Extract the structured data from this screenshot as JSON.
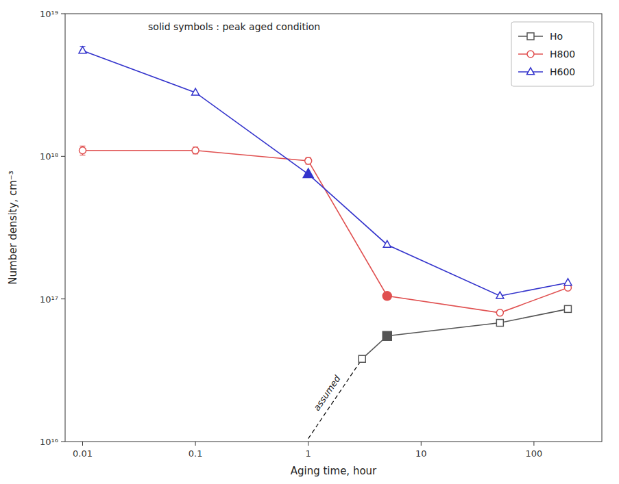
{
  "chart_data": {
    "type": "line",
    "x_label": "Aging time, hour",
    "y_label": "Number density, cm⁻³",
    "log": true,
    "grid": false,
    "legend": "upper right",
    "xlim": [
      0.007,
      400
    ],
    "ylim": [
      1e+16,
      1e+19
    ],
    "xticks": [
      0.01,
      0.1,
      1,
      10,
      100
    ],
    "yticks": [
      {
        "value": 1e+16,
        "label": "10¹⁶"
      },
      {
        "value": 1e+17,
        "label": "10¹⁷"
      },
      {
        "value": 1e+18,
        "label": "10¹⁸"
      },
      {
        "value": 1e+19,
        "label": "10¹⁹"
      }
    ],
    "series": [
      {
        "name": "Ho",
        "color": "#555555",
        "marker": "square",
        "x": [
          3.0,
          5.0,
          50.0,
          200.0
        ],
        "values": [
          3.8e+16,
          5.5e+16,
          6.8e+16,
          8.5e+16
        ],
        "peak_x": [
          5.0
        ],
        "peak_values": [
          5.5e+16
        ]
      },
      {
        "name": "H800",
        "color": "#e05050",
        "marker": "circle",
        "x": [
          0.01,
          0.1,
          1.0,
          5.0,
          50.0,
          200.0
        ],
        "values": [
          1.1e+18,
          1.1e+18,
          9.3e+17,
          1.05e+17,
          8e+16,
          1.2e+17
        ],
        "errors": [
          8e+16,
          6e+16,
          5e+16,
          null,
          null,
          null
        ],
        "peak_x": [
          5.0
        ],
        "peak_values": [
          1.05e+17
        ]
      },
      {
        "name": "H600",
        "color": "#3333cc",
        "marker": "triangle",
        "x": [
          0.01,
          0.1,
          1.0,
          5.0,
          50.0,
          200.0
        ],
        "values": [
          5.5e+18,
          2.8e+18,
          7.5e+17,
          2.4e+17,
          1.05e+17,
          1.3e+17
        ],
        "errors_low": [
          2e+17,
          null,
          null,
          null,
          null,
          null
        ],
        "errors_high": [
          4e+17,
          null,
          null,
          null,
          null,
          null
        ],
        "peak_x": [
          1.0
        ],
        "peak_values": [
          7.5e+17
        ]
      }
    ],
    "annotations": [
      {
        "text": "assumed",
        "x": [
          1.0,
          3.0
        ],
        "values": [
          1.05e+16,
          3.8e+16
        ],
        "line_style": "dashed",
        "color": "#000000"
      },
      {
        "text": "solid symbols : peak aged condition"
      }
    ]
  }
}
